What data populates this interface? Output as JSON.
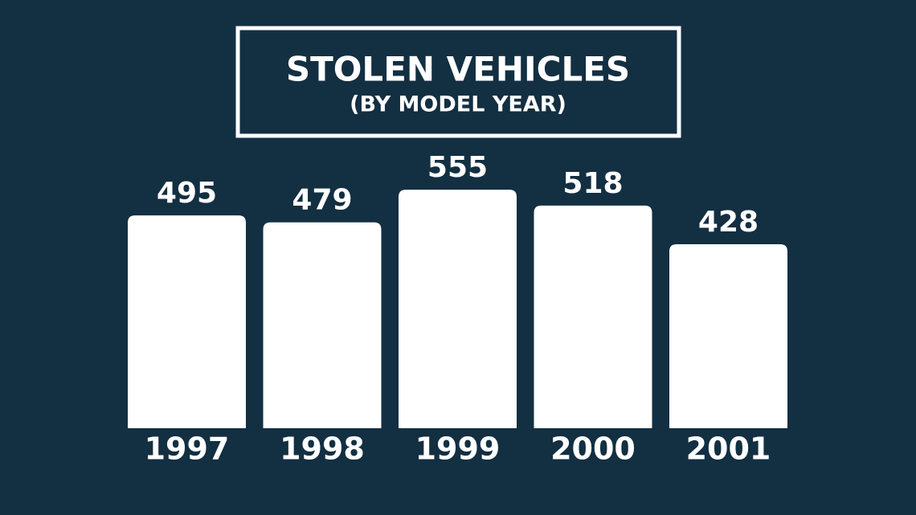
{
  "chart_data": {
    "type": "bar",
    "title": "STOLEN VEHICLES",
    "subtitle": "(BY MODEL YEAR)",
    "categories": [
      "1997",
      "1998",
      "1999",
      "2000",
      "2001"
    ],
    "values": [
      495,
      479,
      555,
      518,
      428
    ],
    "color": "#ffffff",
    "ylim": [
      0,
      600
    ]
  }
}
